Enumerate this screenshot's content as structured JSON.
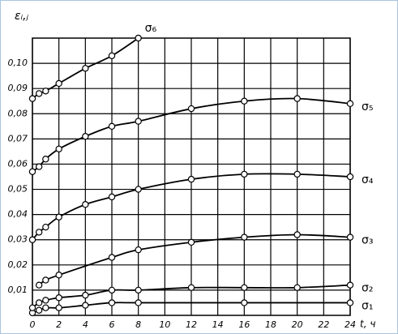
{
  "chart_data": {
    "type": "line",
    "y_label": "εᵢ,ⱼ",
    "x_label": "t, ч",
    "xlim": [
      0,
      24
    ],
    "xticks": [
      0,
      2,
      4,
      6,
      8,
      10,
      12,
      14,
      16,
      18,
      20,
      22,
      24
    ],
    "ylim": [
      0,
      0.11
    ],
    "yticks": [
      {
        "value": 0.01,
        "label": "0,01"
      },
      {
        "value": 0.02,
        "label": "0,02"
      },
      {
        "value": 0.03,
        "label": "0,03"
      },
      {
        "value": 0.04,
        "label": "0,04"
      },
      {
        "value": 0.05,
        "label": "0,05"
      },
      {
        "value": 0.06,
        "label": "0,06"
      },
      {
        "value": 0.07,
        "label": "0,07"
      },
      {
        "value": 0.08,
        "label": "0,08"
      },
      {
        "value": 0.09,
        "label": "0,09"
      },
      {
        "value": 0.1,
        "label": "0,10"
      }
    ],
    "grid": true,
    "series": [
      {
        "name": "σ₁",
        "color": "#000000",
        "x": [
          0,
          0.5,
          1,
          2,
          4,
          6,
          8,
          16,
          24
        ],
        "values": [
          0.001,
          0.002,
          0.003,
          0.003,
          0.004,
          0.005,
          0.005,
          0.005,
          0.005
        ]
      },
      {
        "name": "σ₂",
        "color": "#000000",
        "x": [
          0,
          0.5,
          1,
          2,
          4,
          6,
          8,
          12,
          16,
          20,
          24
        ],
        "values": [
          0.003,
          0.005,
          0.006,
          0.007,
          0.008,
          0.01,
          0.01,
          0.011,
          0.011,
          0.011,
          0.012
        ]
      },
      {
        "name": "σ₃",
        "color": "#000000",
        "x": [
          0.5,
          1,
          2,
          6,
          8,
          12,
          16,
          20,
          24
        ],
        "values": [
          0.012,
          0.014,
          0.016,
          0.023,
          0.026,
          0.029,
          0.031,
          0.032,
          0.031
        ]
      },
      {
        "name": "σ₄",
        "color": "#000000",
        "x": [
          0,
          0.5,
          1,
          2,
          4,
          6,
          8,
          12,
          16,
          20,
          24
        ],
        "values": [
          0.03,
          0.033,
          0.035,
          0.039,
          0.044,
          0.047,
          0.05,
          0.054,
          0.056,
          0.056,
          0.055
        ]
      },
      {
        "name": "σ₅",
        "color": "#000000",
        "x": [
          0,
          0.5,
          1,
          2,
          4,
          6,
          8,
          12,
          16,
          20,
          24
        ],
        "values": [
          0.057,
          0.059,
          0.062,
          0.066,
          0.071,
          0.075,
          0.077,
          0.082,
          0.085,
          0.086,
          0.084
        ]
      },
      {
        "name": "σ₆",
        "color": "#000000",
        "x": [
          0,
          0.5,
          1,
          2,
          4,
          6,
          8
        ],
        "values": [
          0.086,
          0.088,
          0.089,
          0.092,
          0.098,
          0.103,
          0.11
        ]
      }
    ]
  }
}
